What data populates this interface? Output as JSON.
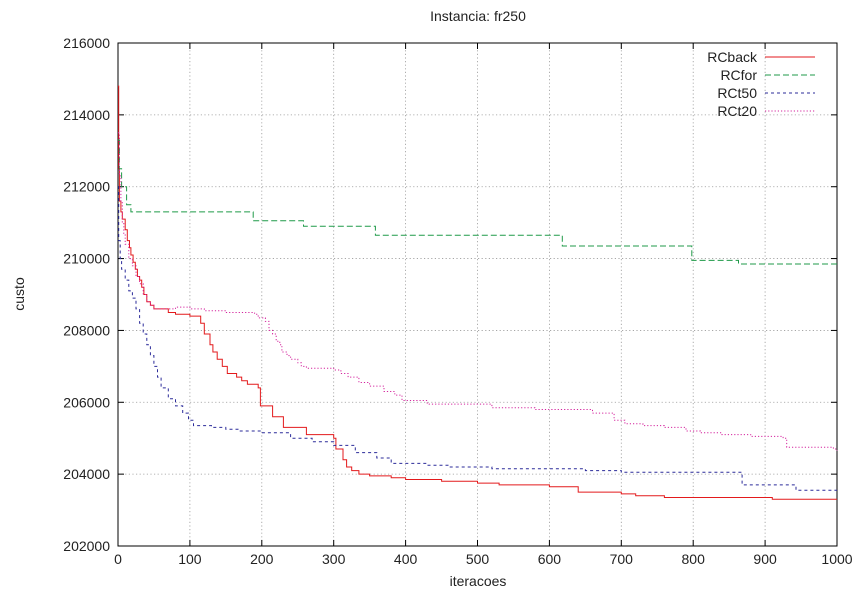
{
  "chart_data": {
    "type": "line",
    "title": "Instancia: fr250",
    "xlabel": "iteracoes",
    "ylabel": "custo",
    "xlim": [
      0,
      1000
    ],
    "ylim": [
      202000,
      216000
    ],
    "xticks": [
      0,
      100,
      200,
      300,
      400,
      500,
      600,
      700,
      800,
      900,
      1000
    ],
    "yticks": [
      202000,
      204000,
      206000,
      208000,
      210000,
      212000,
      214000,
      216000
    ],
    "grid": true,
    "legend_position": "top-right",
    "series": [
      {
        "name": "RCback",
        "color": "#e31a1c",
        "dash": "solid",
        "points": [
          [
            0,
            214800
          ],
          [
            1,
            212500
          ],
          [
            2,
            211600
          ],
          [
            4,
            211300
          ],
          [
            6,
            211100
          ],
          [
            10,
            210800
          ],
          [
            13,
            210500
          ],
          [
            16,
            210300
          ],
          [
            18,
            210100
          ],
          [
            21,
            209900
          ],
          [
            24,
            209700
          ],
          [
            27,
            209500
          ],
          [
            30,
            209400
          ],
          [
            33,
            209200
          ],
          [
            36,
            209000
          ],
          [
            40,
            208800
          ],
          [
            45,
            208700
          ],
          [
            50,
            208600
          ],
          [
            60,
            208600
          ],
          [
            70,
            208500
          ],
          [
            80,
            208450
          ],
          [
            100,
            208400
          ],
          [
            115,
            208200
          ],
          [
            120,
            207900
          ],
          [
            128,
            207600
          ],
          [
            132,
            207400
          ],
          [
            138,
            207200
          ],
          [
            145,
            207000
          ],
          [
            152,
            206800
          ],
          [
            165,
            206700
          ],
          [
            172,
            206600
          ],
          [
            180,
            206500
          ],
          [
            195,
            206400
          ],
          [
            198,
            205900
          ],
          [
            212,
            205900
          ],
          [
            215,
            205600
          ],
          [
            225,
            205600
          ],
          [
            230,
            205300
          ],
          [
            258,
            205300
          ],
          [
            262,
            205100
          ],
          [
            280,
            205100
          ],
          [
            300,
            205000
          ],
          [
            303,
            204700
          ],
          [
            310,
            204700
          ],
          [
            313,
            204400
          ],
          [
            318,
            204200
          ],
          [
            325,
            204100
          ],
          [
            335,
            204000
          ],
          [
            350,
            203950
          ],
          [
            380,
            203900
          ],
          [
            400,
            203850
          ],
          [
            450,
            203800
          ],
          [
            500,
            203750
          ],
          [
            530,
            203700
          ],
          [
            580,
            203700
          ],
          [
            600,
            203650
          ],
          [
            640,
            203500
          ],
          [
            700,
            203450
          ],
          [
            720,
            203400
          ],
          [
            760,
            203350
          ],
          [
            830,
            203350
          ],
          [
            880,
            203350
          ],
          [
            910,
            203300
          ],
          [
            1000,
            203300
          ]
        ]
      },
      {
        "name": "RCfor",
        "color": "#1f9a48",
        "dash": "dashed",
        "points": [
          [
            0,
            213300
          ],
          [
            2,
            212500
          ],
          [
            5,
            212000
          ],
          [
            12,
            211500
          ],
          [
            18,
            211300
          ],
          [
            185,
            211300
          ],
          [
            188,
            211050
          ],
          [
            255,
            211050
          ],
          [
            258,
            210900
          ],
          [
            355,
            210900
          ],
          [
            358,
            210650
          ],
          [
            615,
            210650
          ],
          [
            618,
            210350
          ],
          [
            795,
            210350
          ],
          [
            798,
            209950
          ],
          [
            860,
            209950
          ],
          [
            863,
            209850
          ],
          [
            1000,
            209850
          ]
        ]
      },
      {
        "name": "RCt50",
        "color": "#2b2b9a",
        "dash": "short-dashed",
        "points": [
          [
            0,
            212000
          ],
          [
            1,
            210500
          ],
          [
            3,
            210000
          ],
          [
            5,
            209700
          ],
          [
            10,
            209400
          ],
          [
            15,
            209100
          ],
          [
            20,
            208900
          ],
          [
            25,
            208600
          ],
          [
            30,
            208200
          ],
          [
            35,
            207900
          ],
          [
            40,
            207600
          ],
          [
            45,
            207300
          ],
          [
            50,
            207000
          ],
          [
            55,
            206700
          ],
          [
            60,
            206400
          ],
          [
            70,
            206100
          ],
          [
            80,
            205900
          ],
          [
            90,
            205700
          ],
          [
            98,
            205500
          ],
          [
            105,
            205350
          ],
          [
            130,
            205300
          ],
          [
            150,
            205250
          ],
          [
            170,
            205200
          ],
          [
            200,
            205150
          ],
          [
            240,
            205000
          ],
          [
            270,
            204900
          ],
          [
            300,
            204800
          ],
          [
            330,
            204600
          ],
          [
            360,
            204450
          ],
          [
            380,
            204300
          ],
          [
            430,
            204250
          ],
          [
            460,
            204200
          ],
          [
            520,
            204150
          ],
          [
            600,
            204150
          ],
          [
            650,
            204100
          ],
          [
            700,
            204050
          ],
          [
            750,
            204050
          ],
          [
            865,
            204050
          ],
          [
            868,
            203700
          ],
          [
            900,
            203700
          ],
          [
            940,
            203700
          ],
          [
            943,
            203550
          ],
          [
            1000,
            203550
          ]
        ]
      },
      {
        "name": "RCt20",
        "color": "#d4249e",
        "dash": "dotted",
        "points": [
          [
            0,
            213500
          ],
          [
            2,
            212300
          ],
          [
            4,
            211600
          ],
          [
            6,
            211000
          ],
          [
            8,
            210700
          ],
          [
            10,
            210400
          ],
          [
            15,
            210000
          ],
          [
            20,
            209800
          ],
          [
            25,
            209500
          ],
          [
            30,
            209300
          ],
          [
            35,
            209000
          ],
          [
            40,
            208800
          ],
          [
            45,
            208700
          ],
          [
            50,
            208600
          ],
          [
            60,
            208600
          ],
          [
            70,
            208600
          ],
          [
            80,
            208650
          ],
          [
            100,
            208600
          ],
          [
            120,
            208550
          ],
          [
            150,
            208500
          ],
          [
            190,
            208450
          ],
          [
            195,
            208350
          ],
          [
            205,
            208250
          ],
          [
            210,
            208000
          ],
          [
            215,
            207900
          ],
          [
            220,
            207700
          ],
          [
            225,
            207600
          ],
          [
            228,
            207400
          ],
          [
            235,
            207300
          ],
          [
            240,
            207200
          ],
          [
            250,
            207100
          ],
          [
            255,
            207000
          ],
          [
            262,
            206950
          ],
          [
            300,
            206900
          ],
          [
            310,
            206800
          ],
          [
            320,
            206700
          ],
          [
            335,
            206550
          ],
          [
            350,
            206450
          ],
          [
            370,
            206300
          ],
          [
            385,
            206200
          ],
          [
            395,
            206050
          ],
          [
            430,
            205950
          ],
          [
            470,
            205950
          ],
          [
            520,
            205850
          ],
          [
            580,
            205800
          ],
          [
            620,
            205800
          ],
          [
            660,
            205700
          ],
          [
            690,
            205500
          ],
          [
            705,
            205400
          ],
          [
            730,
            205350
          ],
          [
            760,
            205300
          ],
          [
            790,
            205200
          ],
          [
            810,
            205150
          ],
          [
            840,
            205100
          ],
          [
            880,
            205050
          ],
          [
            925,
            205000
          ],
          [
            930,
            204750
          ],
          [
            995,
            204700
          ],
          [
            1000,
            204650
          ]
        ]
      }
    ]
  }
}
